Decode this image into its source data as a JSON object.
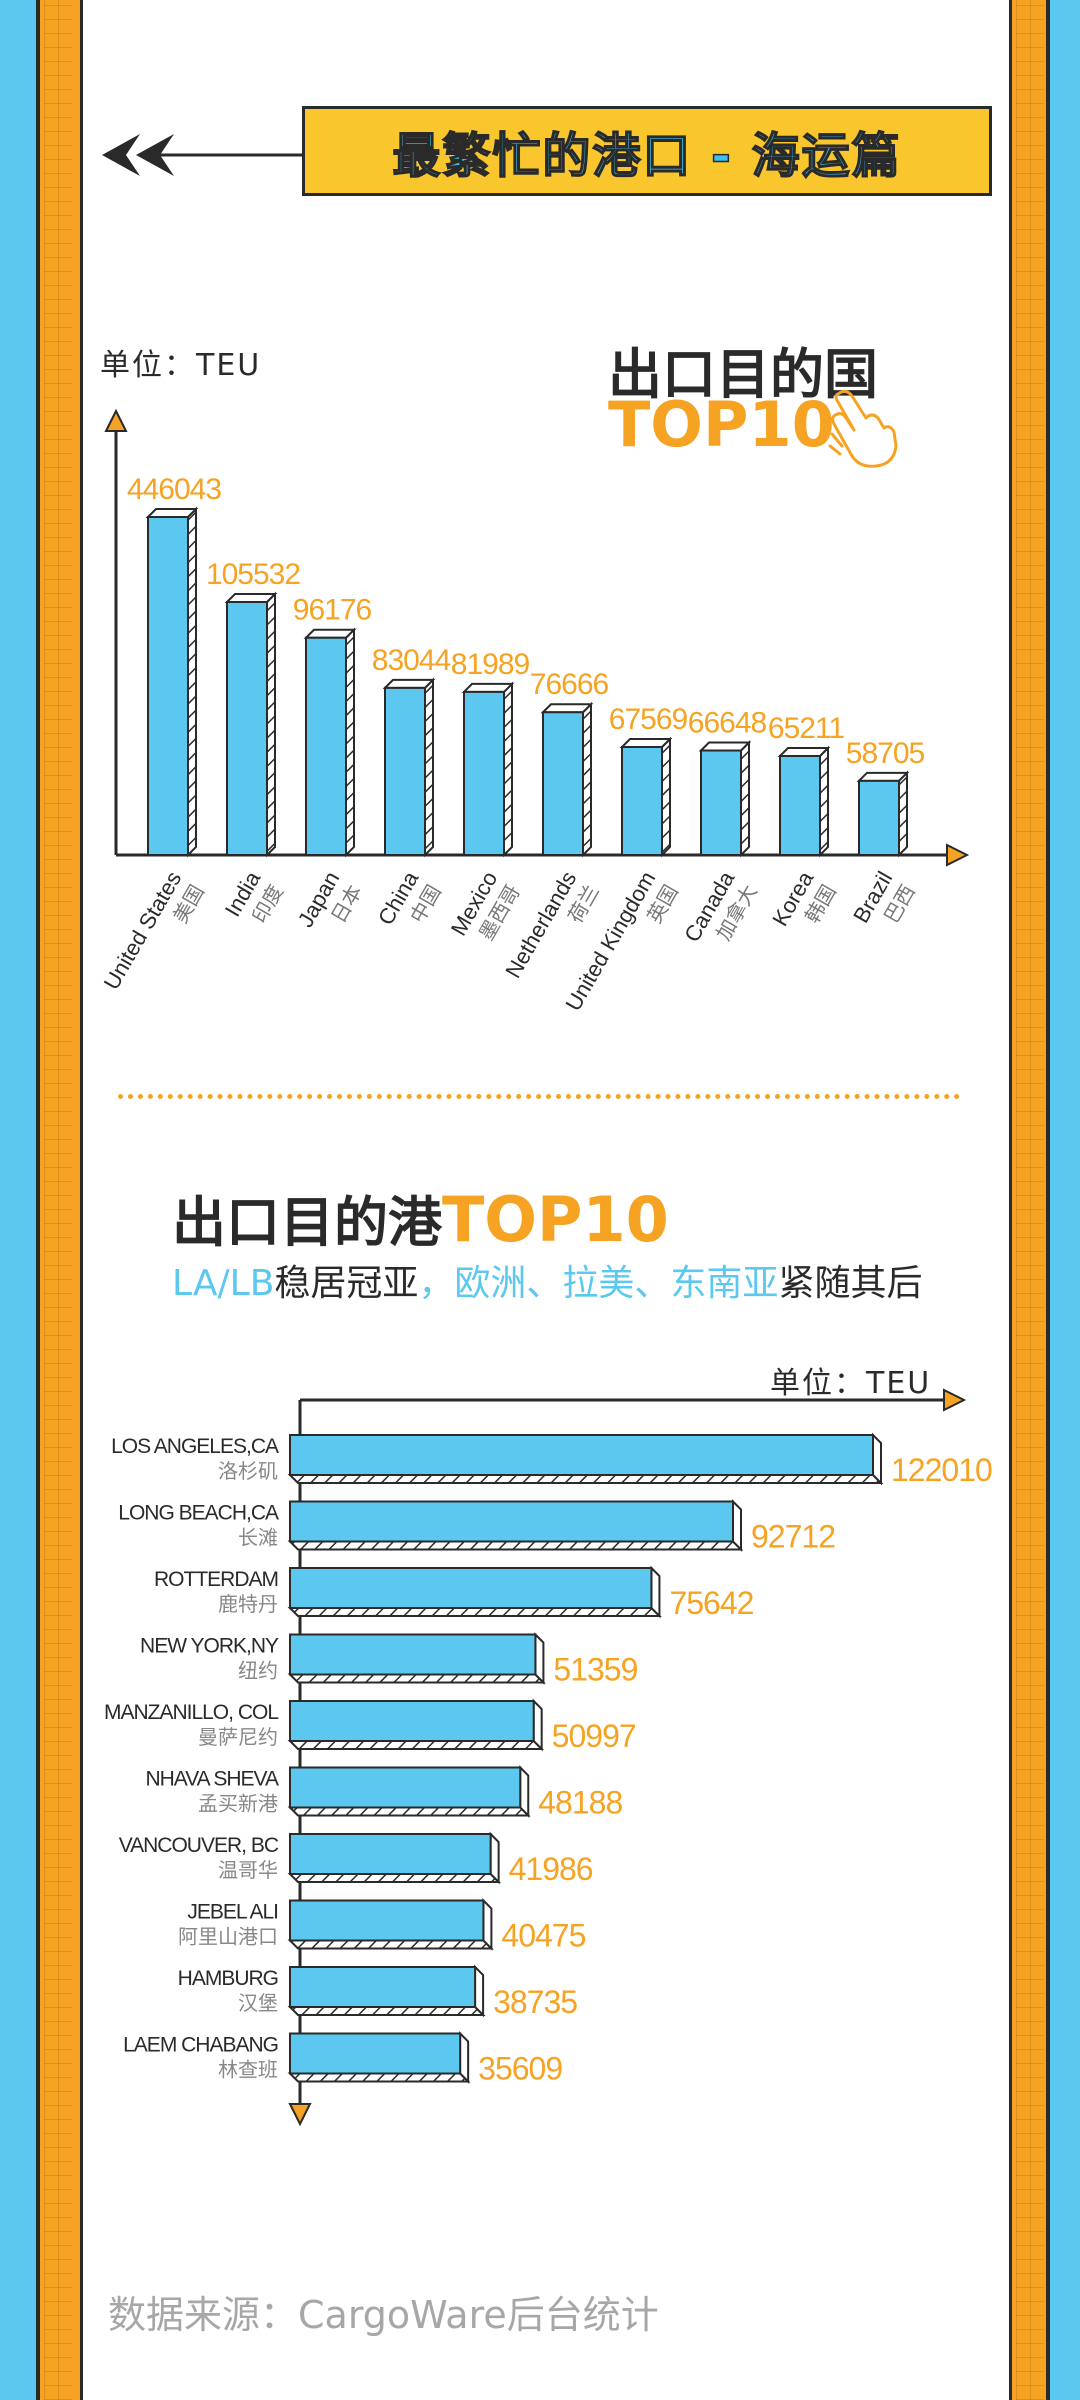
{
  "banner": {
    "title": "最繁忙的港口 - 海运篇"
  },
  "section1": {
    "unit": "单位：TEU",
    "title": "出口目的国",
    "highlight": "TOP10"
  },
  "section2": {
    "title": "出口目的港",
    "highlight": "TOP10",
    "subtitle_parts": [
      "LA/LB",
      "稳居冠亚",
      "，欧洲、拉美、东南亚",
      "紧随其后"
    ],
    "unit": "单位：TEU"
  },
  "source": "数据来源：CargoWare后台统计",
  "colors": {
    "bar": "#5cc8ef",
    "label": "#f6a323",
    "outline": "#2a2a2a",
    "banner": "#f9c62d"
  },
  "chart_data": [
    {
      "type": "bar",
      "orientation": "vertical",
      "categories": [
        "United States",
        "India",
        "Japan",
        "China",
        "Mexico",
        "Netherlands",
        "United Kingdom",
        "Canada",
        "Korea",
        "Brazil"
      ],
      "categories_cn": [
        "美国",
        "印度",
        "日本",
        "中国",
        "墨西哥",
        "荷兰",
        "英国",
        "加拿大",
        "韩国",
        "巴西"
      ],
      "values": [
        446043,
        105532,
        96176,
        83044,
        81989,
        76666,
        67569,
        66648,
        65211,
        58705
      ],
      "title": "出口目的国 TOP10",
      "ylabel": "单位：TEU",
      "grid": false,
      "legend": "none"
    },
    {
      "type": "bar",
      "orientation": "horizontal",
      "categories": [
        "LOS ANGELES,CA",
        "LONG BEACH,CA",
        "ROTTERDAM",
        "NEW YORK,NY",
        "MANZANILLO, COL",
        "NHAVA SHEVA",
        "VANCOUVER, BC",
        "JEBEL ALI",
        "HAMBURG",
        "LAEM CHABANG"
      ],
      "categories_cn": [
        "洛杉矶",
        "长滩",
        "鹿特丹",
        "纽约",
        "曼萨尼约",
        "孟买新港",
        "温哥华",
        "阿里山港口",
        "汉堡",
        "林查班"
      ],
      "values": [
        122010,
        92712,
        75642,
        51359,
        50997,
        48188,
        41986,
        40475,
        38735,
        35609
      ],
      "title": "出口目的港 TOP10",
      "xlabel": "单位：TEU",
      "grid": false,
      "legend": "none"
    }
  ]
}
